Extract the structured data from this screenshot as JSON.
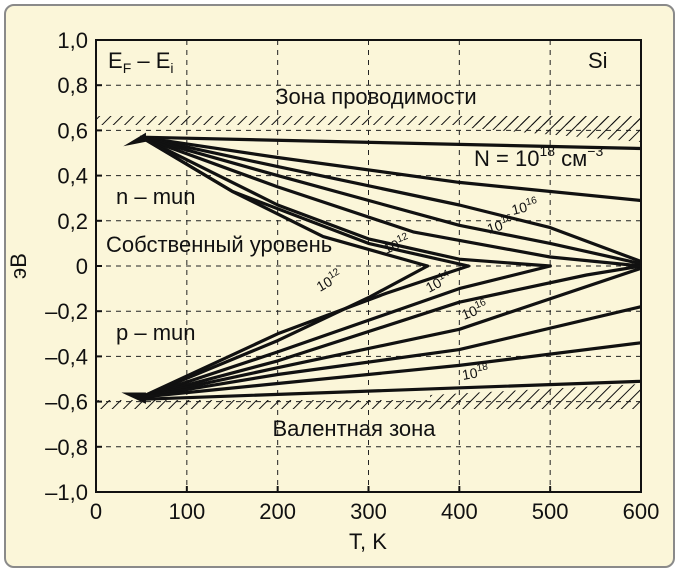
{
  "chart_data": {
    "type": "line",
    "material": "Si",
    "corner_label": {
      "main": "E",
      "sub1": "F",
      "dash": " – ",
      "main2": "E",
      "sub2": "i"
    },
    "xlabel": "T, K",
    "ylabel": "эВ",
    "xlim": [
      0,
      600
    ],
    "ylim": [
      -1.0,
      1.0
    ],
    "xticks": [
      0,
      100,
      200,
      300,
      400,
      500,
      600
    ],
    "xtick_labels": [
      "0",
      "100",
      "200",
      "300",
      "400",
      "500",
      "600"
    ],
    "yticks": [
      1.0,
      0.8,
      0.6,
      0.4,
      0.2,
      0,
      -0.2,
      -0.4,
      -0.6,
      -0.8,
      -1.0
    ],
    "ytick_labels": [
      "1,0",
      "0,8",
      "0,6",
      "0,4",
      "0,2",
      "0",
      "–0,2",
      "–0,4",
      "–0,6",
      "–0,8",
      "–1,0"
    ],
    "grid": true,
    "annotations": {
      "conduction_band": "Зона проводимости",
      "valence_band": "Валентная зона",
      "n_type": "n – mun",
      "p_type": "p – mun",
      "intrinsic": "Собственный уровень",
      "n_label_top": {
        "base": "N = 10",
        "exp": "18",
        "unit": " см",
        "unit_exp": "−3"
      },
      "curve_labels": [
        {
          "base": "10",
          "exp": "16"
        },
        {
          "base": "10",
          "exp": "16"
        },
        {
          "base": "10",
          "exp": "12"
        },
        {
          "base": "10",
          "exp": "12"
        },
        {
          "base": "10",
          "exp": "14"
        },
        {
          "base": "10",
          "exp": "16"
        },
        {
          "base": "10",
          "exp": "18"
        }
      ]
    },
    "band_edges": {
      "conduction": 0.6,
      "valence": -0.6
    },
    "series": [
      {
        "x": [
          50,
          600
        ],
        "y": [
          0.57,
          0.52
        ]
      },
      {
        "x": [
          50,
          200,
          400,
          600
        ],
        "y": [
          0.57,
          0.48,
          0.37,
          0.29
        ]
      },
      {
        "x": [
          50,
          200,
          400,
          500,
          600
        ],
        "y": [
          0.57,
          0.44,
          0.27,
          0.17,
          0.02
        ]
      },
      {
        "x": [
          50,
          200,
          400,
          500,
          600
        ],
        "y": [
          0.57,
          0.4,
          0.18,
          0.1,
          0.01
        ]
      },
      {
        "x": [
          50,
          200,
          350,
          500,
          600
        ],
        "y": [
          0.57,
          0.35,
          0.15,
          0.04,
          0.0
        ]
      },
      {
        "x": [
          50,
          200,
          300,
          400,
          500
        ],
        "y": [
          0.57,
          0.27,
          0.12,
          0.03,
          0.0
        ]
      },
      {
        "x": [
          50,
          150,
          300,
          410
        ],
        "y": [
          0.57,
          0.33,
          0.1,
          0.0
        ]
      },
      {
        "x": [
          50,
          150,
          250,
          365
        ],
        "y": [
          0.57,
          0.33,
          0.13,
          0.0
        ]
      },
      {
        "x": [
          50,
          200,
          300,
          365
        ],
        "y": [
          -0.58,
          -0.33,
          -0.14,
          0.0
        ]
      },
      {
        "x": [
          50,
          200,
          320,
          410
        ],
        "y": [
          -0.58,
          -0.3,
          -0.12,
          0.0
        ]
      },
      {
        "x": [
          50,
          200,
          400,
          500
        ],
        "y": [
          -0.58,
          -0.38,
          -0.1,
          0.0
        ]
      },
      {
        "x": [
          50,
          200,
          400,
          540,
          600
        ],
        "y": [
          -0.58,
          -0.42,
          -0.16,
          -0.04,
          0.0
        ]
      },
      {
        "x": [
          50,
          200,
          400,
          600
        ],
        "y": [
          -0.58,
          -0.45,
          -0.28,
          -0.01
        ]
      },
      {
        "x": [
          50,
          200,
          400,
          600
        ],
        "y": [
          -0.58,
          -0.48,
          -0.37,
          -0.18
        ]
      },
      {
        "x": [
          50,
          200,
          400,
          600
        ],
        "y": [
          -0.58,
          -0.52,
          -0.44,
          -0.34
        ]
      },
      {
        "x": [
          50,
          600
        ],
        "y": [
          -0.59,
          -0.51
        ]
      }
    ],
    "colors": {
      "background": "#fbf6d9",
      "lines": "#111111",
      "grid": "#222222"
    }
  }
}
